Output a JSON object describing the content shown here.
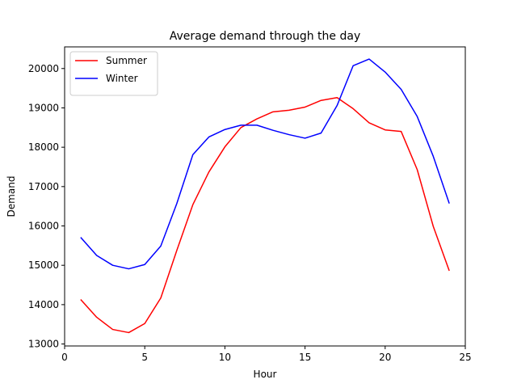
{
  "chart_data": {
    "type": "line",
    "title": "Average demand through the day",
    "xlabel": "Hour",
    "ylabel": "Demand",
    "xlim": [
      0,
      25
    ],
    "ylim": [
      12950,
      20550
    ],
    "xticks": [
      0,
      5,
      10,
      15,
      20,
      25
    ],
    "yticks": [
      13000,
      14000,
      15000,
      16000,
      17000,
      18000,
      19000,
      20000
    ],
    "grid": false,
    "legend_position": "top-left",
    "x": [
      1,
      2,
      3,
      4,
      5,
      6,
      7,
      8,
      9,
      10,
      11,
      12,
      13,
      14,
      15,
      16,
      17,
      18,
      19,
      20,
      21,
      22,
      23,
      24
    ],
    "series": [
      {
        "name": "Summer",
        "color": "#ff0000",
        "values": [
          14130,
          13680,
          13370,
          13290,
          13520,
          14170,
          15380,
          16540,
          17370,
          18010,
          18500,
          18720,
          18900,
          18940,
          19020,
          19190,
          19260,
          18980,
          18620,
          18440,
          18400,
          17430,
          15990,
          14860
        ]
      },
      {
        "name": "Winter",
        "color": "#0000ff",
        "values": [
          15710,
          15250,
          15000,
          14910,
          15020,
          15490,
          16570,
          17810,
          18260,
          18450,
          18560,
          18560,
          18430,
          18320,
          18230,
          18360,
          19060,
          20070,
          20240,
          19910,
          19470,
          18780,
          17770,
          16570
        ]
      }
    ]
  }
}
